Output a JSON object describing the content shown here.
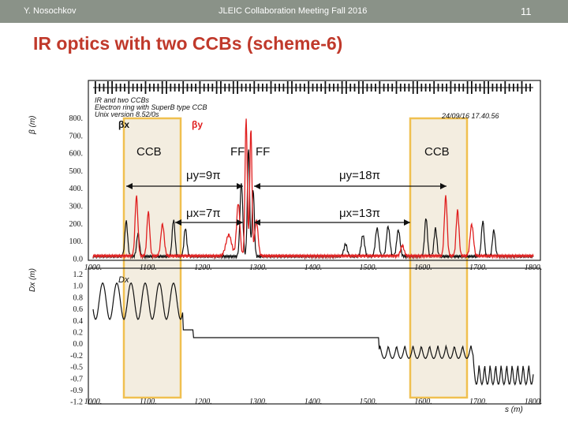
{
  "slide": {
    "author": "Y. Nosochkov",
    "meeting": "JLEIC Collaboration Meeting Fall 2016",
    "page_number": "11",
    "title": "IR optics with two CCBs (scheme-6)"
  },
  "plot": {
    "header_lines": [
      "IR and two CCBs",
      "Electron ring with SuperB type CCB",
      "Unix version 8.52/0s"
    ],
    "timestamp": "24/09/16  17.40.56",
    "beta_axis_label": "β (m)",
    "beta_legend_x": "βx",
    "beta_legend_y": "βy",
    "dx_axis_label": "Dx (m)",
    "dx_legend": "Dx",
    "s_axis_label": "s (m)",
    "beta_ticks": [
      "800.",
      "700.",
      "600.",
      "500.",
      "400.",
      "300.",
      "200.",
      "100.",
      "0.0"
    ],
    "dx_ticks": [
      "1.2",
      "1.0",
      "0.8",
      "0.6",
      "0.4",
      "0.2",
      "0.0",
      "-0.2",
      "-0.5",
      "-0.7",
      "-0.9",
      "-1.2"
    ],
    "s_ticks": [
      "1000.",
      "1100.",
      "1200.",
      "1300.",
      "1400.",
      "1500.",
      "1600.",
      "1700.",
      "1800."
    ]
  },
  "annotations": {
    "ccb_left": "CCB",
    "ccb_right": "CCB",
    "ff_left": "FF",
    "ff_right": "FF",
    "mu_y_left": "μy=9π",
    "mu_y_right": "μy=18π",
    "mu_x_left": "μx=7π",
    "mu_x_right": "μx=13π"
  },
  "colors": {
    "topbar": "#8a9288",
    "title": "#c0392b",
    "beta_x": "#111111",
    "beta_y": "#e02020",
    "highlight_border": "#f0c050",
    "highlight_fill": "#f3ede0"
  }
}
